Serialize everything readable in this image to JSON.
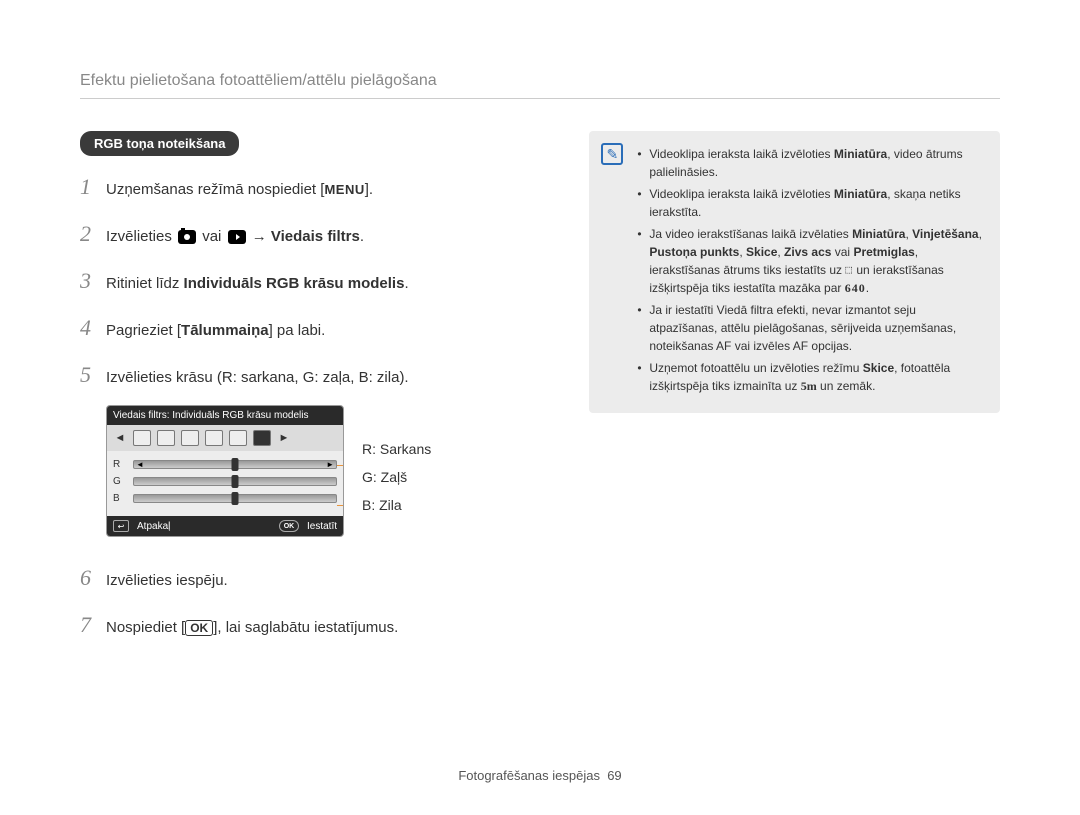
{
  "header": "Efektu pielietošana fotoattēliem/attēlu pielāgošana",
  "section_badge": "RGB toņa noteikšana",
  "steps": {
    "s1_a": "Uzņemšanas režīmā nospiediet [",
    "s1_menu": "MENU",
    "s1_b": "].",
    "s2_a": "Izvēlieties ",
    "s2_or": " vai ",
    "s2_arrow": " → ",
    "s2_bold": "Viedais filtrs",
    "s2_end": ".",
    "s3_a": "Ritiniet līdz ",
    "s3_bold": "Individuāls RGB krāsu modelis",
    "s3_end": ".",
    "s4_a": "Pagrieziet [",
    "s4_bold": "Tālummaiņa",
    "s4_b": "] pa labi.",
    "s5": "Izvēlieties krāsu (R: sarkana, G: zaļa, B: zila).",
    "s6": "Izvēlieties iespēju.",
    "s7_a": "Nospiediet [",
    "s7_ok": "OK",
    "s7_b": "], lai saglabātu iestatījumus."
  },
  "rgb_panel": {
    "title": "Viedais filtrs: Individuāls RGB krāsu modelis",
    "r": "R",
    "g": "G",
    "b": "B",
    "back": "Atpakaļ",
    "set": "Iestatīt",
    "ok": "OK"
  },
  "legend": {
    "r": "R: Sarkans",
    "g": "G: Zaļš",
    "b": "B: Zila"
  },
  "notes": {
    "n1_a": "Videoklipa ieraksta laikā izvēloties ",
    "n1_b": "Miniatūra",
    "n1_c": ", video ātrums palielināsies.",
    "n2_a": "Videoklipa ieraksta laikā izvēloties ",
    "n2_b": "Miniatūra",
    "n2_c": ", skaņa netiks ierakstīta.",
    "n3_a": "Ja video ierakstīšanas laikā izvēlaties ",
    "n3_b1": "Miniatūra",
    "n3_s1": ", ",
    "n3_b2": "Vinjetēšana",
    "n3_s2": ", ",
    "n3_b3": "Pustoņa punkts",
    "n3_s3": ", ",
    "n3_b4": "Skice",
    "n3_s4": ", ",
    "n3_b5": "Zivs acs",
    "n3_s5": " vai ",
    "n3_b6": "Pretmiglas",
    "n3_c": ", ierakstīšanas ātrums tiks iestatīts uz ",
    "n3_d": " un ierakstīšanas izšķirtspēja tiks iestatīta mazāka par ",
    "n3_res": "640",
    "n3_end": ".",
    "n4": "Ja ir iestatīti Viedā filtra efekti, nevar izmantot seju atpazīšanas, attēlu pielāgošanas, sērijveida uzņemšanas, noteikšanas AF vai izvēles AF opcijas.",
    "n5_a": "Uzņemot fotoattēlu un izvēloties režīmu ",
    "n5_b": "Skice",
    "n5_c": ", fotoattēla izšķirtspēja tiks izmainīta uz ",
    "n5_res": "5m",
    "n5_d": " un zemāk."
  },
  "footer_label": "Fotografēšanas iespējas",
  "footer_page": "69"
}
